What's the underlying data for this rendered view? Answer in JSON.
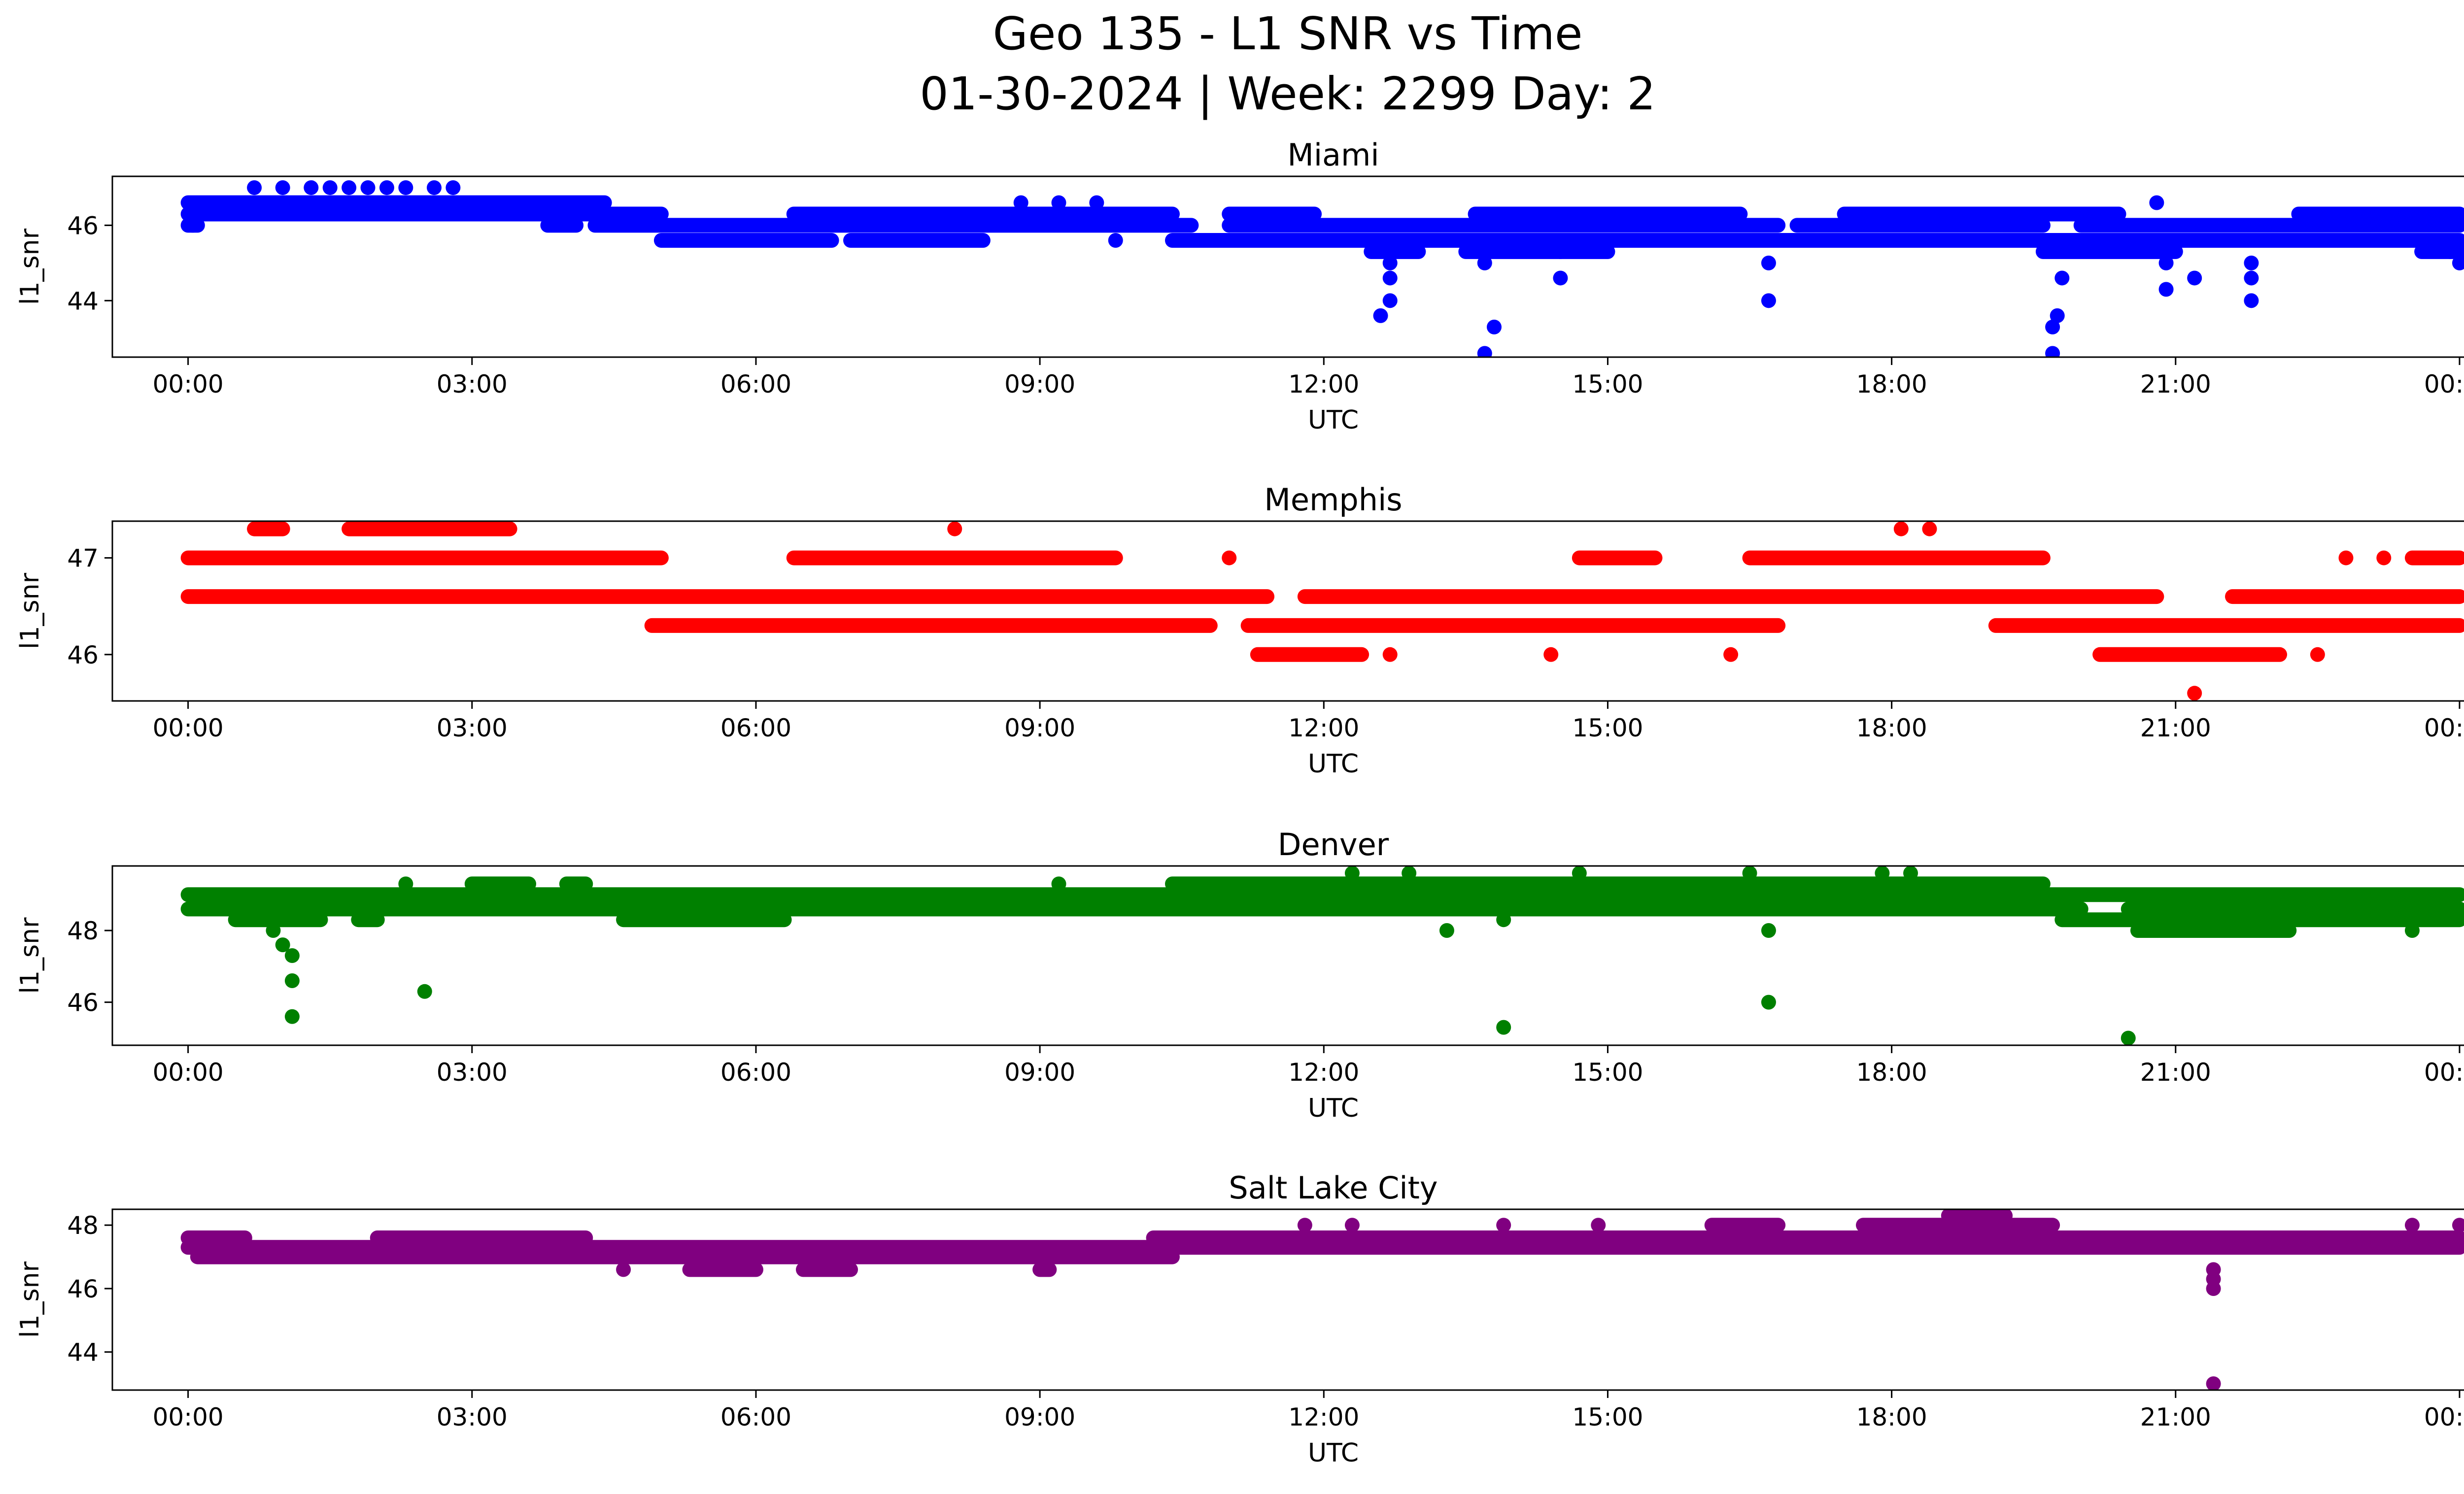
{
  "figure": {
    "title_line1": "Geo 135 - L1 SNR vs Time",
    "title_line2": "01-30-2024 | Week: 2299 Day: 2"
  },
  "chart_data": [
    {
      "type": "scatter",
      "title": "Miami",
      "xlabel": "UTC",
      "ylabel": "l1_snr",
      "color": "#0000ff",
      "xlim": [
        -0.8,
        25.0
      ],
      "ylim": [
        42.5,
        47.3
      ],
      "xticks": [
        "00:00",
        "03:00",
        "06:00",
        "09:00",
        "12:00",
        "15:00",
        "18:00",
        "21:00",
        "00:00"
      ],
      "yticks": [
        44,
        46
      ],
      "bands": [
        {
          "y": 46.6,
          "segments": [
            [
              0.0,
              4.4
            ]
          ]
        },
        {
          "y": 46.3,
          "segments": [
            [
              0.0,
              5.0
            ],
            [
              6.4,
              10.4
            ],
            [
              11.0,
              11.9
            ],
            [
              13.6,
              16.4
            ],
            [
              17.5,
              20.4
            ],
            [
              22.3,
              24.0
            ]
          ]
        },
        {
          "y": 46.0,
          "segments": [
            [
              0.0,
              0.1
            ],
            [
              3.8,
              4.1
            ],
            [
              4.3,
              10.6
            ],
            [
              11.0,
              16.8
            ],
            [
              17.0,
              19.6
            ],
            [
              20.0,
              24.0
            ]
          ]
        },
        {
          "y": 45.6,
          "segments": [
            [
              5.0,
              6.8
            ],
            [
              7.0,
              8.4
            ],
            [
              10.4,
              24.0
            ]
          ]
        },
        {
          "y": 45.3,
          "segments": [
            [
              12.5,
              13.0
            ],
            [
              13.5,
              15.0
            ],
            [
              19.6,
              21.0
            ],
            [
              23.6,
              24.0
            ]
          ]
        }
      ],
      "points": [
        {
          "x": 0.7,
          "y": 47.0
        },
        {
          "x": 1.0,
          "y": 47.0
        },
        {
          "x": 1.3,
          "y": 47.0
        },
        {
          "x": 1.5,
          "y": 47.0
        },
        {
          "x": 1.7,
          "y": 47.0
        },
        {
          "x": 1.9,
          "y": 47.0
        },
        {
          "x": 2.1,
          "y": 47.0
        },
        {
          "x": 2.3,
          "y": 47.0
        },
        {
          "x": 2.6,
          "y": 47.0
        },
        {
          "x": 2.8,
          "y": 47.0
        },
        {
          "x": 8.8,
          "y": 46.6
        },
        {
          "x": 9.2,
          "y": 46.6
        },
        {
          "x": 9.6,
          "y": 46.6
        },
        {
          "x": 20.8,
          "y": 46.6
        },
        {
          "x": 0.05,
          "y": 46.0
        },
        {
          "x": 9.8,
          "y": 45.6
        },
        {
          "x": 12.6,
          "y": 43.6
        },
        {
          "x": 12.7,
          "y": 44.0
        },
        {
          "x": 12.7,
          "y": 44.6
        },
        {
          "x": 12.7,
          "y": 45.0
        },
        {
          "x": 13.7,
          "y": 42.6
        },
        {
          "x": 13.7,
          "y": 45.0
        },
        {
          "x": 13.8,
          "y": 43.3
        },
        {
          "x": 14.5,
          "y": 44.6
        },
        {
          "x": 14.5,
          "y": 45.3
        },
        {
          "x": 16.7,
          "y": 44.0
        },
        {
          "x": 16.7,
          "y": 45.0
        },
        {
          "x": 19.7,
          "y": 42.6
        },
        {
          "x": 19.7,
          "y": 43.3
        },
        {
          "x": 19.75,
          "y": 43.6
        },
        {
          "x": 19.8,
          "y": 44.6
        },
        {
          "x": 20.9,
          "y": 44.3
        },
        {
          "x": 20.9,
          "y": 45.0
        },
        {
          "x": 21.2,
          "y": 44.6
        },
        {
          "x": 21.8,
          "y": 44.0
        },
        {
          "x": 21.8,
          "y": 44.6
        },
        {
          "x": 21.8,
          "y": 45.0
        },
        {
          "x": 23.9,
          "y": 45.3
        },
        {
          "x": 24.0,
          "y": 45.0
        }
      ]
    },
    {
      "type": "scatter",
      "title": "Memphis",
      "xlabel": "UTC",
      "ylabel": "l1_snr",
      "color": "#ff0000",
      "xlim": [
        -0.8,
        25.0
      ],
      "ylim": [
        45.52,
        47.38
      ],
      "xticks": [
        "00:00",
        "03:00",
        "06:00",
        "09:00",
        "12:00",
        "15:00",
        "18:00",
        "21:00",
        "00:00"
      ],
      "yticks": [
        46,
        47
      ],
      "bands": [
        {
          "y": 47.3,
          "segments": [
            [
              0.7,
              1.0
            ],
            [
              1.7,
              3.4
            ]
          ]
        },
        {
          "y": 47.0,
          "segments": [
            [
              0.0,
              5.0
            ],
            [
              6.4,
              9.8
            ],
            [
              14.7,
              15.5
            ],
            [
              16.5,
              19.6
            ],
            [
              23.5,
              24.0
            ]
          ]
        },
        {
          "y": 46.6,
          "segments": [
            [
              0.0,
              11.4
            ],
            [
              11.8,
              20.8
            ],
            [
              21.6,
              24.0
            ]
          ]
        },
        {
          "y": 46.3,
          "segments": [
            [
              4.9,
              10.8
            ],
            [
              11.2,
              16.8
            ],
            [
              19.1,
              24.0
            ]
          ]
        },
        {
          "y": 46.0,
          "segments": [
            [
              11.3,
              12.4
            ],
            [
              20.2,
              22.1
            ]
          ]
        }
      ],
      "points": [
        {
          "x": 8.1,
          "y": 47.3
        },
        {
          "x": 18.1,
          "y": 47.3
        },
        {
          "x": 18.4,
          "y": 47.3
        },
        {
          "x": 11.0,
          "y": 47.0
        },
        {
          "x": 12.7,
          "y": 46.0
        },
        {
          "x": 14.4,
          "y": 46.0
        },
        {
          "x": 16.3,
          "y": 46.0
        },
        {
          "x": 21.2,
          "y": 45.6
        },
        {
          "x": 22.5,
          "y": 46.0
        },
        {
          "x": 23.2,
          "y": 47.0
        },
        {
          "x": 22.8,
          "y": 47.0
        }
      ]
    },
    {
      "type": "scatter",
      "title": "Denver",
      "xlabel": "UTC",
      "ylabel": "l1_snr",
      "color": "#008000",
      "xlim": [
        -0.8,
        25.0
      ],
      "ylim": [
        44.8,
        49.8
      ],
      "xticks": [
        "00:00",
        "03:00",
        "06:00",
        "09:00",
        "12:00",
        "15:00",
        "18:00",
        "21:00",
        "00:00"
      ],
      "yticks": [
        46,
        48
      ],
      "bands": [
        {
          "y": 49.0,
          "segments": [
            [
              0.0,
              24.0
            ]
          ]
        },
        {
          "y": 48.6,
          "segments": [
            [
              0.0,
              20.0
            ],
            [
              20.5,
              24.0
            ]
          ]
        },
        {
          "y": 48.3,
          "segments": [
            [
              0.5,
              1.4
            ],
            [
              1.8,
              2.0
            ],
            [
              4.6,
              6.3
            ],
            [
              19.8,
              24.0
            ]
          ]
        },
        {
          "y": 49.3,
          "segments": [
            [
              3.0,
              3.6
            ],
            [
              4.0,
              4.2
            ],
            [
              10.4,
              19.6
            ]
          ]
        },
        {
          "y": 48.0,
          "segments": [
            [
              20.6,
              22.2
            ]
          ]
        }
      ],
      "points": [
        {
          "x": 0.9,
          "y": 48.0
        },
        {
          "x": 1.0,
          "y": 47.6
        },
        {
          "x": 1.1,
          "y": 47.3
        },
        {
          "x": 1.1,
          "y": 46.6
        },
        {
          "x": 1.1,
          "y": 45.6
        },
        {
          "x": 2.5,
          "y": 46.3
        },
        {
          "x": 2.3,
          "y": 49.3
        },
        {
          "x": 9.2,
          "y": 49.3
        },
        {
          "x": 12.3,
          "y": 49.6
        },
        {
          "x": 12.9,
          "y": 49.6
        },
        {
          "x": 13.3,
          "y": 48.0
        },
        {
          "x": 13.9,
          "y": 48.3
        },
        {
          "x": 13.9,
          "y": 45.3
        },
        {
          "x": 14.7,
          "y": 49.6
        },
        {
          "x": 16.7,
          "y": 48.0
        },
        {
          "x": 16.7,
          "y": 46.0
        },
        {
          "x": 16.5,
          "y": 49.6
        },
        {
          "x": 18.2,
          "y": 49.6
        },
        {
          "x": 20.5,
          "y": 45.0
        },
        {
          "x": 23.5,
          "y": 48.0
        },
        {
          "x": 17.9,
          "y": 49.6
        }
      ]
    },
    {
      "type": "scatter",
      "title": "Salt Lake City",
      "xlabel": "UTC",
      "ylabel": "l1_snr",
      "color": "#800080",
      "xlim": [
        -0.8,
        25.0
      ],
      "ylim": [
        42.8,
        48.5
      ],
      "xticks": [
        "00:00",
        "03:00",
        "06:00",
        "09:00",
        "12:00",
        "15:00",
        "18:00",
        "21:00",
        "00:00"
      ],
      "yticks": [
        44,
        46,
        48
      ],
      "bands": [
        {
          "y": 47.6,
          "segments": [
            [
              0.0,
              0.6
            ],
            [
              2.0,
              4.2
            ],
            [
              10.2,
              24.0
            ]
          ]
        },
        {
          "y": 47.3,
          "segments": [
            [
              0.0,
              24.0
            ]
          ]
        },
        {
          "y": 47.0,
          "segments": [
            [
              0.1,
              10.4
            ]
          ]
        },
        {
          "y": 46.6,
          "segments": [
            [
              5.3,
              6.0
            ],
            [
              6.5,
              7.0
            ],
            [
              9.0,
              9.1
            ]
          ]
        },
        {
          "y": 48.0,
          "segments": [
            [
              16.1,
              16.8
            ],
            [
              17.7,
              19.7
            ]
          ]
        },
        {
          "y": 48.3,
          "segments": [
            [
              18.6,
              19.2
            ]
          ]
        }
      ],
      "points": [
        {
          "x": 4.6,
          "y": 46.6
        },
        {
          "x": 11.8,
          "y": 48.0
        },
        {
          "x": 12.3,
          "y": 48.0
        },
        {
          "x": 13.9,
          "y": 48.0
        },
        {
          "x": 14.9,
          "y": 48.0
        },
        {
          "x": 21.4,
          "y": 46.6
        },
        {
          "x": 21.4,
          "y": 46.3
        },
        {
          "x": 21.4,
          "y": 46.0
        },
        {
          "x": 21.4,
          "y": 43.0
        },
        {
          "x": 23.5,
          "y": 48.0
        },
        {
          "x": 24.0,
          "y": 48.0
        }
      ]
    }
  ]
}
